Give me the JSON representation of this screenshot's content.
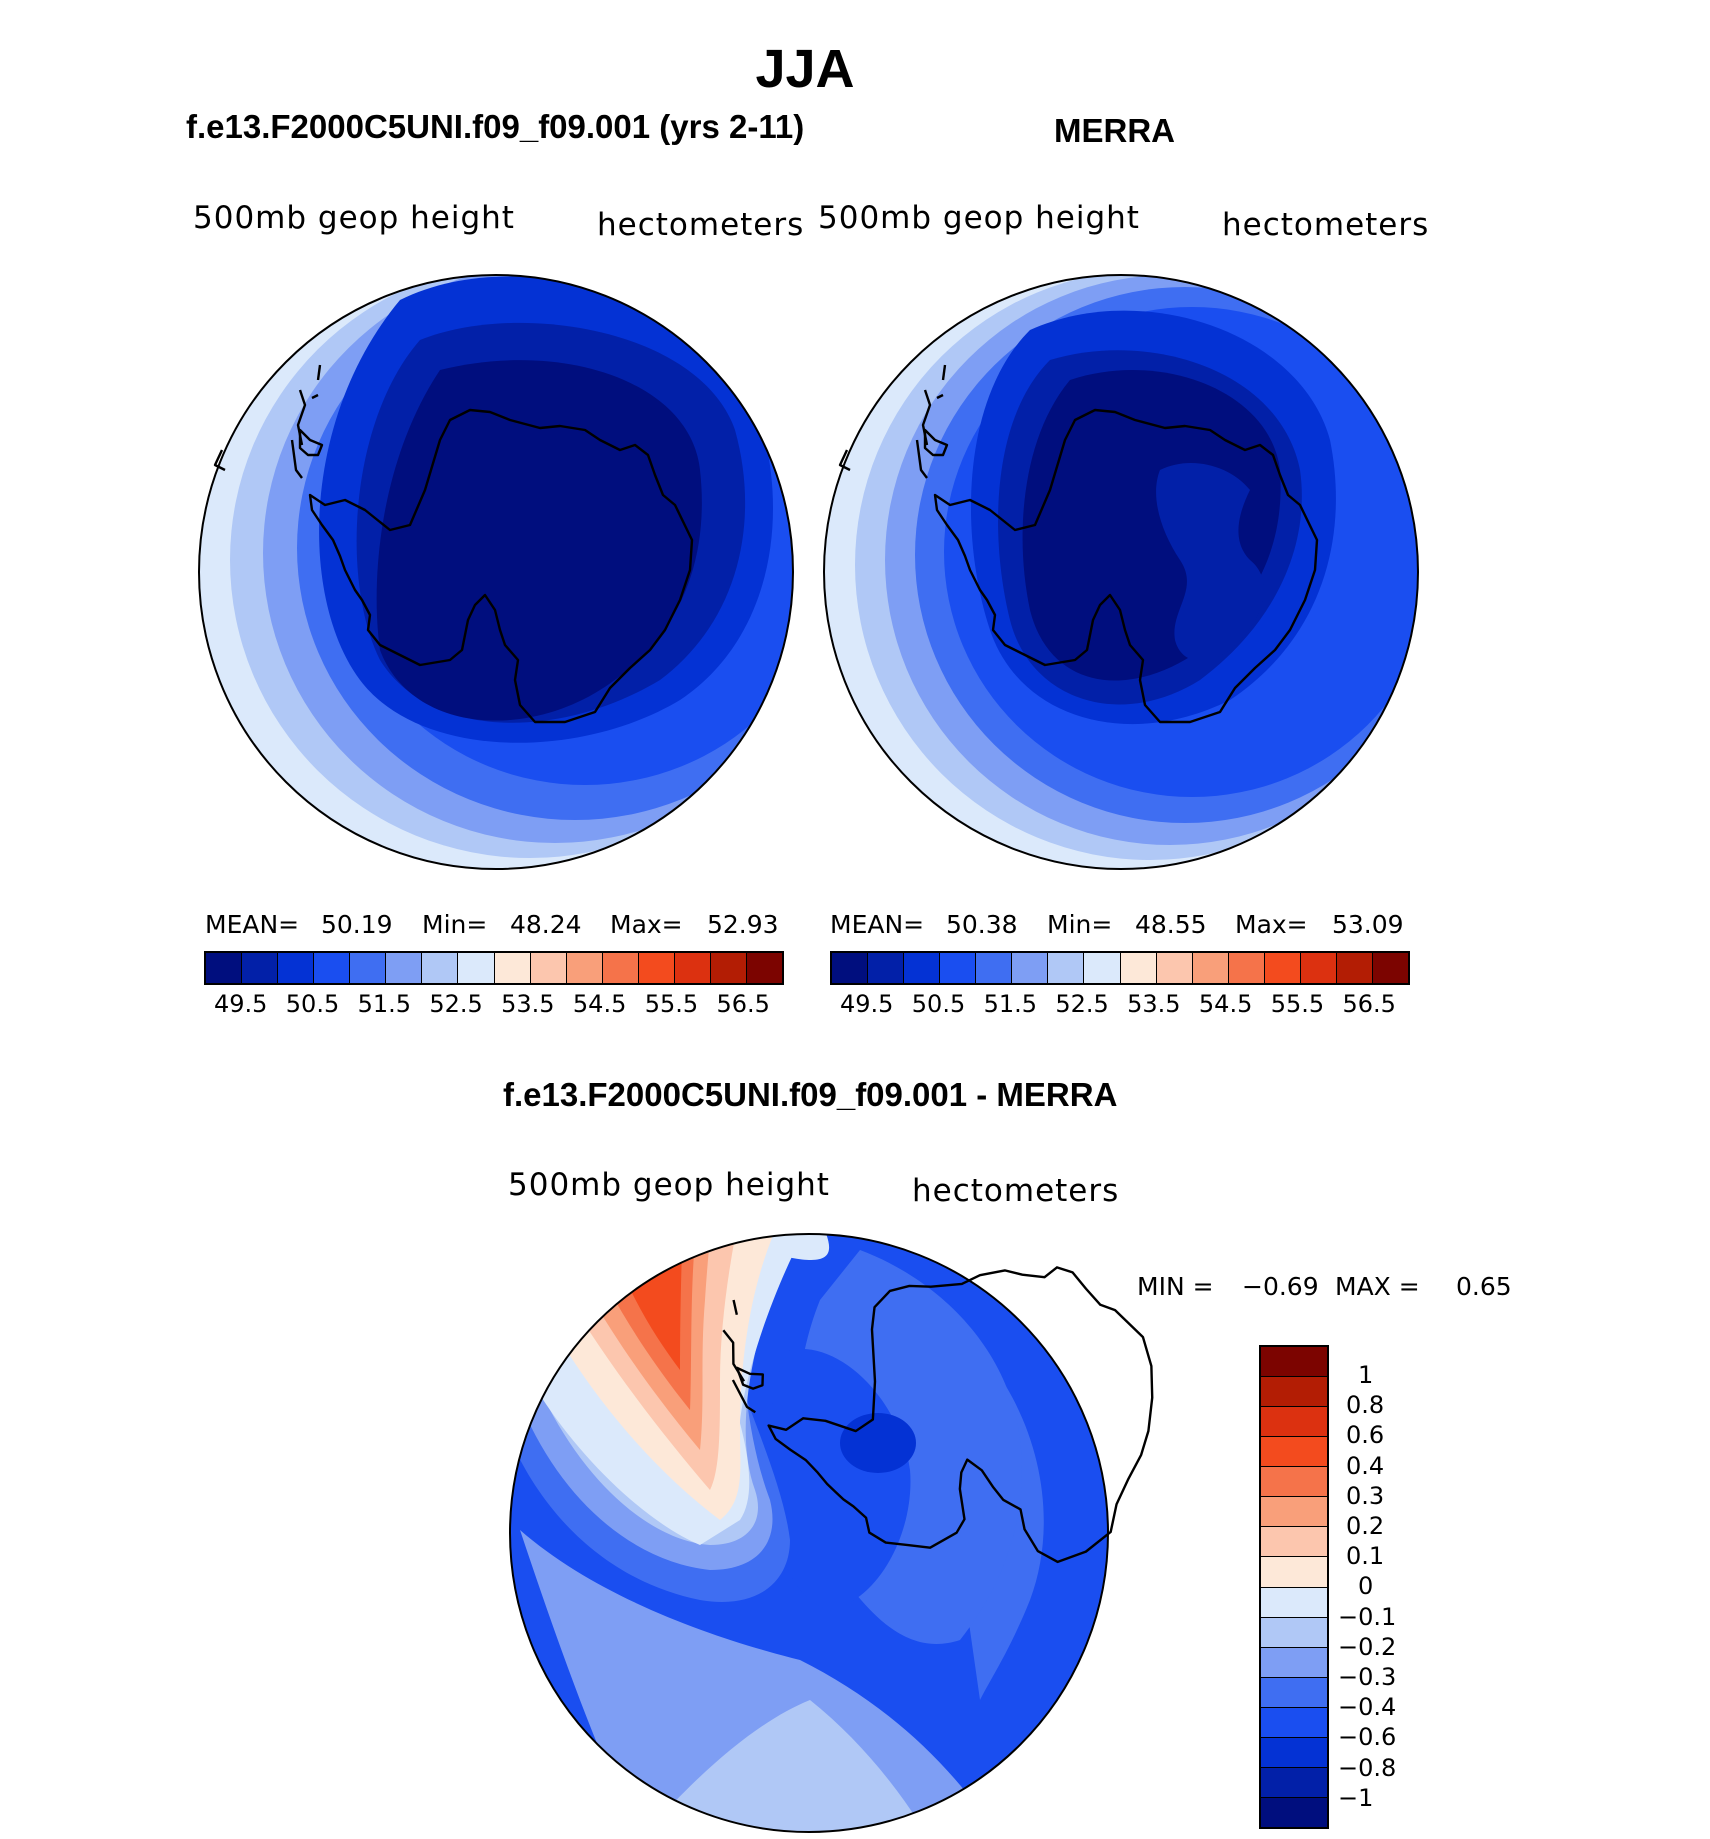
{
  "title": "JJA",
  "colors": {
    "bg": "#ffffff",
    "coast": "#000000",
    "mean_scale": [
      "#000e7e",
      "#0220a8",
      "#0432d4",
      "#1a4ef0",
      "#3f6ef2",
      "#7e9ef4",
      "#b0c8f6",
      "#dbe9fb",
      "#fde8d8",
      "#fcc6ae",
      "#f99f7a",
      "#f5734a",
      "#f34b1e",
      "#dc3110",
      "#b31d04",
      "#7c0400"
    ],
    "diff_scale": [
      "#000e7e",
      "#0220a8",
      "#0432d4",
      "#1a4ef0",
      "#3f6ef2",
      "#7e9ef4",
      "#b0c8f6",
      "#dbe9fb",
      "#fde8d8",
      "#fcc6ae",
      "#f99f7a",
      "#f5734a",
      "#f34b1e",
      "#dc3110",
      "#b31d04",
      "#7c0400"
    ]
  },
  "panels": [
    {
      "title": "f.e13.F2000C5UNI.f09_f09.001 (yrs 2-11)",
      "variable": "500mb  geop  height",
      "units": "hectometers",
      "stats": {
        "mean_label": "MEAN=",
        "mean": "50.19",
        "min_label": "Min=",
        "min": "48.24",
        "max_label": "Max=",
        "max": "52.93"
      },
      "colorbar_ticks": [
        "49.5",
        "50.5",
        "51.5",
        "52.5",
        "53.5",
        "54.5",
        "55.5",
        "56.5"
      ]
    },
    {
      "title": "MERRA",
      "variable": "500mb  geop  height",
      "units": "hectometers",
      "stats": {
        "mean_label": "MEAN=",
        "mean": "50.38",
        "min_label": "Min=",
        "min": "48.55",
        "max_label": "Max=",
        "max": "53.09"
      },
      "colorbar_ticks": [
        "49.5",
        "50.5",
        "51.5",
        "52.5",
        "53.5",
        "54.5",
        "55.5",
        "56.5"
      ]
    }
  ],
  "diff_panel": {
    "title": "f.e13.F2000C5UNI.f09_f09.001 - MERRA",
    "variable": "500mb  geop  height",
    "units": "hectometers",
    "minmax": {
      "min_label": "MIN =",
      "min": "−0.69",
      "max_label": "MAX =",
      "max": "0.65"
    },
    "colorbar_ticks": [
      "1",
      "0.8",
      "0.6",
      "0.4",
      "0.3",
      "0.2",
      "0.1",
      "0",
      "−0.1",
      "−0.2",
      "−0.3",
      "−0.4",
      "−0.6",
      "−0.8",
      "−1"
    ]
  },
  "chart_data": [
    {
      "type": "heatmap",
      "projection": "south-polar stereographic",
      "title": "f.e13.F2000C5UNI.f09_f09.001 (yrs 2-11)",
      "field": "500mb geop height",
      "units": "hectometers",
      "season": "JJA",
      "stats": {
        "mean": 50.19,
        "min": 48.24,
        "max": 52.93
      },
      "contour_levels": [
        49.5,
        50,
        50.5,
        51,
        51.5,
        52,
        52.5,
        53,
        53.5,
        54,
        54.5,
        55,
        55.5,
        56,
        56.5
      ],
      "bands_outer_to_inner": [
        53,
        52.5,
        52,
        51.5,
        51,
        50.5,
        50,
        49.5,
        49
      ]
    },
    {
      "type": "heatmap",
      "projection": "south-polar stereographic",
      "title": "MERRA",
      "field": "500mb geop height",
      "units": "hectometers",
      "season": "JJA",
      "stats": {
        "mean": 50.38,
        "min": 48.55,
        "max": 53.09
      },
      "contour_levels": [
        49.5,
        50,
        50.5,
        51,
        51.5,
        52,
        52.5,
        53,
        53.5,
        54,
        54.5,
        55,
        55.5,
        56,
        56.5
      ],
      "bands_outer_to_inner": [
        53,
        52.5,
        52,
        51.5,
        51,
        50.5,
        50,
        49.5,
        49
      ]
    },
    {
      "type": "heatmap",
      "projection": "south-polar stereographic",
      "title": "f.e13.F2000C5UNI.f09_f09.001 - MERRA",
      "field": "500mb geop height difference",
      "units": "hectometers",
      "season": "JJA",
      "stats": {
        "min": -0.69,
        "max": 0.65
      },
      "contour_levels": [
        -1,
        -0.8,
        -0.6,
        -0.4,
        -0.3,
        -0.2,
        -0.1,
        0,
        0.1,
        0.2,
        0.3,
        0.4,
        0.6,
        0.8,
        1
      ]
    }
  ]
}
